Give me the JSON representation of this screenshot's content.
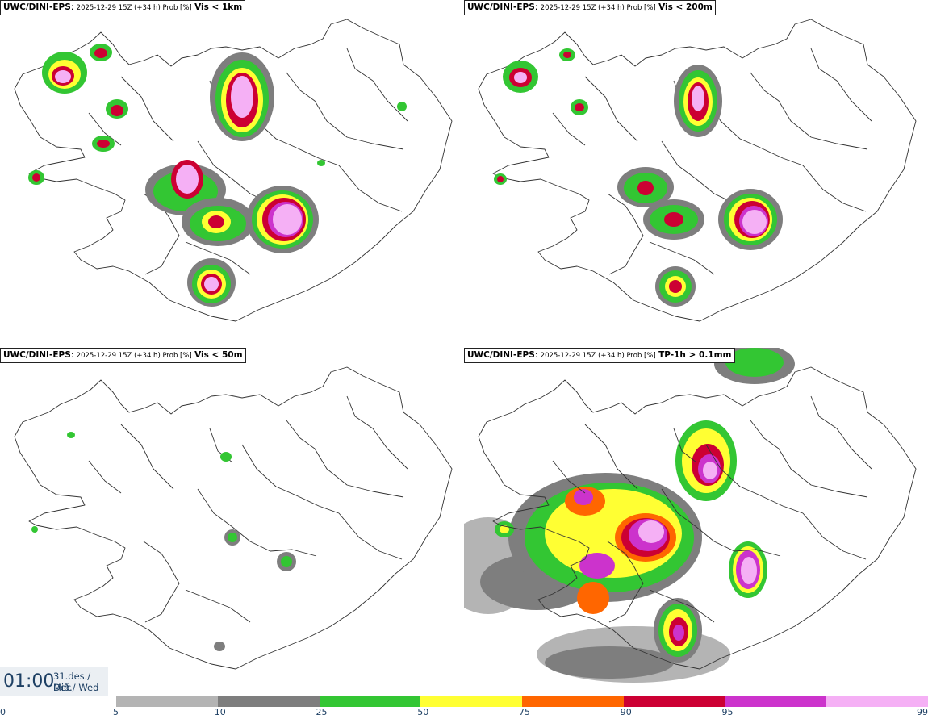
{
  "panels": [
    {
      "model": "UWC/DINI-EPS",
      "run": "2025-12-29 15Z (+34 h) Prob [%]",
      "variable": "Vis < 1km"
    },
    {
      "model": "UWC/DINI-EPS",
      "run": "2025-12-29 15Z (+34 h) Prob [%]",
      "variable": "Vis < 200m"
    },
    {
      "model": "UWC/DINI-EPS",
      "run": "2025-12-29 15Z (+34 h) Prob [%]",
      "variable": "Vis < 50m"
    },
    {
      "model": "UWC/DINI-EPS",
      "run": "2025-12-29 15Z (+34 h) Prob [%]",
      "variable": "TP-1h > 0.1mm"
    }
  ],
  "valid_time": {
    "time": "01:00",
    "date_line1": "31.des./ Dec",
    "date_line2": "Mið./ Wed"
  },
  "colorbar": {
    "ticks": [
      "0",
      "5",
      "10",
      "25",
      "50",
      "75",
      "90",
      "95",
      "99"
    ],
    "colors": [
      "#b4b4b4",
      "#7e7e7e",
      "#33c633",
      "#ffff33",
      "#ff6600",
      "#cc0033",
      "#cc33cc",
      "#f5b0f5"
    ]
  },
  "palette": {
    "p5": "#b4b4b4",
    "p10": "#7e7e7e",
    "p25": "#33c633",
    "p50": "#ffff33",
    "p75": "#ff6600",
    "p90": "#cc0033",
    "p95": "#cc33cc",
    "p99": "#f5b0f5"
  }
}
